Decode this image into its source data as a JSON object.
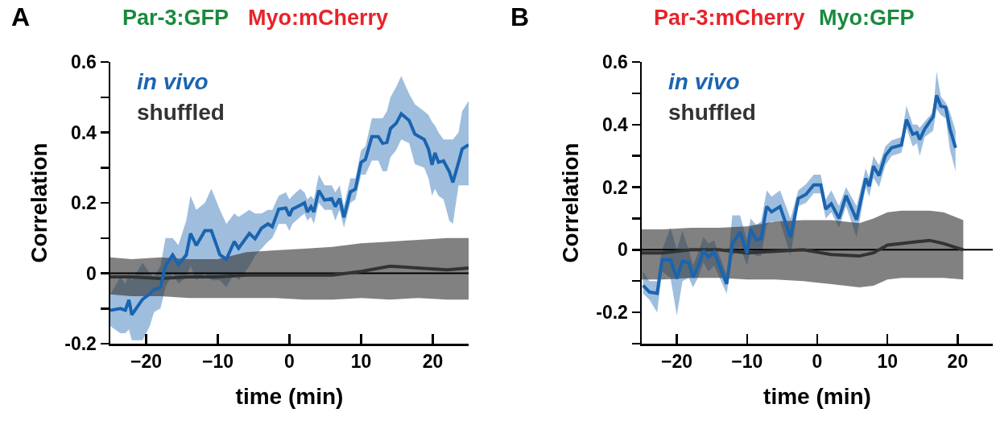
{
  "chart_data": [
    {
      "type": "line",
      "title": "A",
      "annotations": [
        "Par-3:GFP",
        "Myo:mCherry"
      ],
      "xlabel": "time (min)",
      "ylabel": "Correlation",
      "legend": "top left",
      "grid": false,
      "xlim": [
        -25,
        25
      ],
      "xticks": [
        -20,
        -10,
        0,
        10,
        20
      ],
      "ylim": [
        -0.2,
        0.6
      ],
      "yticks": [
        -0.2,
        {
          "value": -0.1,
          "label": null
        },
        0,
        {
          "value": 0.1,
          "label": null
        },
        0.2,
        {
          "value": 0.3,
          "label": null
        },
        0.4,
        {
          "value": 0.5,
          "label": null
        },
        0.6
      ],
      "ref_lines": [
        {
          "axis": "y",
          "value": 0,
          "color": "#000000"
        }
      ],
      "series": [
        {
          "name": "in vivo",
          "color": "#1a64b0",
          "x": [
            -25,
            -23.6,
            -22.9,
            -22.4,
            -22,
            -20.5,
            -19.5,
            -18.9,
            -18,
            -17.3,
            -16.3,
            -15.5,
            -14.4,
            -13.8,
            -13,
            -11.8,
            -10.9,
            -9.7,
            -8.8,
            -7.7,
            -7.1,
            -5.6,
            -4.8,
            -3.9,
            -3,
            -2.4,
            -1.5,
            -0.5,
            0,
            0.4,
            1.5,
            2.1,
            2.5,
            3,
            3.4,
            4.1,
            4.9,
            5.9,
            6.4,
            7,
            7.6,
            8.5,
            9.2,
            10,
            10.6,
            11.5,
            12.4,
            13,
            13.6,
            14.1,
            14.9,
            15.6,
            16.7,
            17.5,
            18.8,
            19.4,
            19.9,
            20.3,
            20.8,
            21.5,
            22.3,
            22.8,
            23.6,
            24.1,
            25
          ],
          "values": [
            -0.105,
            -0.1,
            -0.105,
            -0.076,
            -0.118,
            -0.074,
            -0.059,
            -0.047,
            -0.04,
            0.021,
            0.052,
            0.025,
            0.052,
            0.113,
            0.079,
            0.121,
            0.121,
            0.052,
            0.04,
            0.09,
            0.071,
            0.113,
            0.098,
            0.128,
            0.14,
            0.132,
            0.182,
            0.185,
            0.163,
            0.182,
            0.193,
            0.2,
            0.174,
            0.189,
            0.174,
            0.235,
            0.208,
            0.212,
            0.189,
            0.212,
            0.159,
            0.231,
            0.239,
            0.315,
            0.323,
            0.388,
            0.388,
            0.369,
            0.372,
            0.411,
            0.426,
            0.453,
            0.434,
            0.395,
            0.38,
            0.353,
            0.308,
            0.342,
            0.315,
            0.319,
            0.289,
            0.258,
            0.315,
            0.353,
            0.365
          ],
          "lower": [
            -0.15,
            -0.17,
            -0.17,
            -0.16,
            -0.19,
            -0.19,
            -0.15,
            -0.11,
            -0.1,
            -0.04,
            0,
            -0.03,
            -0.01,
            0.02,
            -0.02,
            0,
            -0.02,
            -0.02,
            -0.04,
            0,
            -0.02,
            0.02,
            0.05,
            0.07,
            0.09,
            0.1,
            0.14,
            0.14,
            0.12,
            0.14,
            0.16,
            0.17,
            0.15,
            0.16,
            0.14,
            0.2,
            0.18,
            0.18,
            0.15,
            0.18,
            0.13,
            0.2,
            0.21,
            0.28,
            0.28,
            0.32,
            0.32,
            0.29,
            0.29,
            0.33,
            0.35,
            0.38,
            0.37,
            0.31,
            0.3,
            0.27,
            0.22,
            0.24,
            0.22,
            0.21,
            0.15,
            0.14,
            0.25,
            0.25,
            0.25
          ],
          "upper": [
            -0.06,
            -0.01,
            -0.03,
            0,
            -0.02,
            0.03,
            0,
            -0.01,
            0.02,
            0.1,
            0.1,
            0.08,
            0.15,
            0.22,
            0.18,
            0.2,
            0.24,
            0.18,
            0.14,
            0.17,
            0.16,
            0.18,
            0.17,
            0.17,
            0.18,
            0.18,
            0.22,
            0.23,
            0.21,
            0.22,
            0.24,
            0.23,
            0.21,
            0.22,
            0.21,
            0.28,
            0.25,
            0.25,
            0.23,
            0.25,
            0.19,
            0.27,
            0.27,
            0.35,
            0.36,
            0.44,
            0.44,
            0.44,
            0.46,
            0.5,
            0.53,
            0.56,
            0.51,
            0.48,
            0.46,
            0.45,
            0.43,
            0.42,
            0.4,
            0.38,
            0.38,
            0.38,
            0.4,
            0.46,
            0.49
          ]
        },
        {
          "name": "shuffled",
          "color": "#333333",
          "x": [
            -25,
            -22,
            -18,
            -14,
            -10,
            -6,
            -2,
            2,
            6,
            10,
            14,
            18,
            22,
            25
          ],
          "values": [
            -0.01,
            -0.01,
            -0.015,
            -0.01,
            -0.01,
            -0.005,
            -0.005,
            -0.005,
            -0.005,
            0.005,
            0.02,
            0.015,
            0.01,
            0.015
          ],
          "upper": [
            0.045,
            0.04,
            0.045,
            0.04,
            0.04,
            0.06,
            0.065,
            0.07,
            0.075,
            0.085,
            0.09,
            0.095,
            0.1,
            0.1
          ],
          "lower": [
            -0.06,
            -0.065,
            -0.065,
            -0.07,
            -0.07,
            -0.07,
            -0.07,
            -0.075,
            -0.075,
            -0.07,
            -0.075,
            -0.07,
            -0.075,
            -0.075
          ]
        }
      ]
    },
    {
      "type": "line",
      "title": "B",
      "annotations": [
        "Par-3:mCherry",
        "Myo:GFP"
      ],
      "xlabel": "time (min)",
      "ylabel": "Correlation",
      "legend": "top left",
      "grid": false,
      "xlim": [
        -25,
        25
      ],
      "xticks": [
        -20,
        -10,
        0,
        10,
        20
      ],
      "ylim": [
        -0.3,
        0.6
      ],
      "yticks": [
        {
          "value": -0.3,
          "label": null
        },
        -0.2,
        {
          "value": -0.1,
          "label": null
        },
        0,
        {
          "value": 0.1,
          "label": null
        },
        0.2,
        {
          "value": 0.3,
          "label": null
        },
        0.4,
        {
          "value": 0.5,
          "label": null
        },
        0.6
      ],
      "ref_lines": [
        {
          "axis": "y",
          "value": 0,
          "color": "#000000"
        }
      ],
      "series": [
        {
          "name": "in vivo",
          "color": "#1a64b0",
          "x": [
            -24.8,
            -23.9,
            -22.8,
            -22.1,
            -20.9,
            -20,
            -19.2,
            -18.3,
            -17.7,
            -17,
            -16.2,
            -15.5,
            -14.7,
            -12.9,
            -12.1,
            -11,
            -10,
            -9.5,
            -8.7,
            -8,
            -7.2,
            -6.5,
            -5.3,
            -3.8,
            -2.7,
            -1.6,
            -0.5,
            0.5,
            1.2,
            2,
            3.1,
            4.1,
            5.6,
            6.9,
            7.4,
            8,
            8.8,
            9.7,
            10.6,
            12,
            12.7,
            13.6,
            14.2,
            14.6,
            15.3,
            16.5,
            17,
            17.6,
            18.3,
            18.9,
            19.7
          ],
          "values": [
            -0.114,
            -0.135,
            -0.139,
            -0.032,
            -0.032,
            -0.092,
            -0.037,
            -0.041,
            -0.088,
            -0.054,
            -0.003,
            -0.024,
            -0.007,
            -0.109,
            0.019,
            0.057,
            -0.011,
            0.066,
            0.032,
            0.036,
            0.138,
            0.121,
            0.138,
            0.04,
            0.164,
            0.177,
            0.207,
            0.207,
            0.13,
            0.147,
            0.1,
            0.173,
            0.096,
            0.228,
            0.203,
            0.267,
            0.237,
            0.301,
            0.326,
            0.335,
            0.416,
            0.369,
            0.374,
            0.352,
            0.386,
            0.425,
            0.493,
            0.459,
            0.455,
            0.386,
            0.326
          ],
          "lower": [
            -0.14,
            -0.16,
            -0.2,
            -0.07,
            -0.09,
            -0.21,
            -0.1,
            -0.09,
            -0.12,
            -0.09,
            -0.04,
            -0.07,
            -0.05,
            -0.14,
            -0.02,
            0.01,
            -0.05,
            0,
            -0.02,
            -0.02,
            0.08,
            0.09,
            0.09,
            -0.02,
            0.14,
            0.15,
            0.18,
            0.18,
            0.1,
            0.12,
            0.07,
            0.14,
            0.04,
            0.2,
            0.17,
            0.23,
            0.2,
            0.27,
            0.3,
            0.31,
            0.39,
            0.33,
            0.34,
            0.3,
            0.36,
            0.38,
            0.45,
            0.43,
            0.42,
            0.32,
            0.25
          ],
          "upper": [
            -0.07,
            -0.1,
            -0.1,
            0,
            0.07,
            0,
            0.06,
            0,
            -0.05,
            -0.01,
            0.04,
            0.02,
            0.03,
            -0.08,
            0.11,
            0.11,
            0.03,
            0.1,
            0.08,
            0.09,
            0.19,
            0.17,
            0.19,
            0.1,
            0.19,
            0.21,
            0.24,
            0.24,
            0.16,
            0.19,
            0.14,
            0.2,
            0.14,
            0.26,
            0.23,
            0.3,
            0.27,
            0.33,
            0.35,
            0.36,
            0.46,
            0.4,
            0.4,
            0.39,
            0.41,
            0.44,
            0.57,
            0.49,
            0.47,
            0.44,
            0.38
          ]
        },
        {
          "name": "shuffled",
          "color": "#333333",
          "x": [
            -25,
            -22,
            -18,
            -14,
            -10,
            -6,
            -2,
            2,
            6,
            8,
            10,
            12,
            14,
            16,
            18,
            20.8
          ],
          "values": [
            -0.01,
            -0.01,
            0,
            0,
            -0.01,
            -0.005,
            0,
            -0.015,
            -0.02,
            -0.01,
            0.015,
            0.02,
            0.025,
            0.03,
            0.02,
            0
          ],
          "upper": [
            0.065,
            0.065,
            0.07,
            0.07,
            0.075,
            0.09,
            0.095,
            0.095,
            0.085,
            0.1,
            0.12,
            0.125,
            0.125,
            0.125,
            0.12,
            0.095
          ],
          "lower": [
            -0.095,
            -0.095,
            -0.09,
            -0.09,
            -0.095,
            -0.095,
            -0.1,
            -0.11,
            -0.12,
            -0.115,
            -0.095,
            -0.09,
            -0.09,
            -0.09,
            -0.09,
            -0.095
          ]
        }
      ]
    }
  ]
}
